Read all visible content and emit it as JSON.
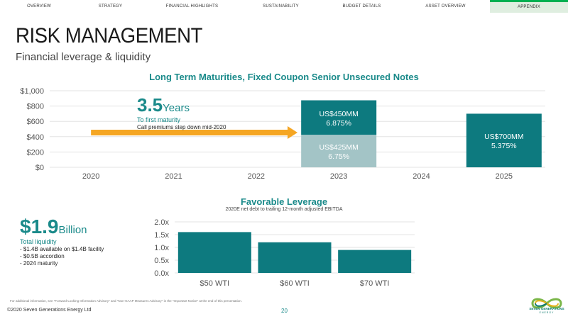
{
  "nav": {
    "items": [
      {
        "label": "OVERVIEW"
      },
      {
        "label": "STRATEGY"
      },
      {
        "label": "FINANCIAL HIGHLIGHTS"
      },
      {
        "label": "SUSTAINABILITY"
      },
      {
        "label": "BUDGET DETAILS"
      },
      {
        "label": "ASSET OVERVIEW"
      },
      {
        "label": "APPENDIX",
        "active": true
      }
    ],
    "active_color": "#00b050"
  },
  "title": "RISK MANAGEMENT",
  "subtitle": "Financial leverage & liquidity",
  "maturity": {
    "value": "3.5",
    "unit": "Years",
    "label": "To first maturity",
    "note": "Call premiums step down mid-2020"
  },
  "liquidity": {
    "value": "$1.9",
    "unit": "Billion",
    "label": "Total liquidity",
    "items": [
      "- $1.4B available on $1.4B facility",
      "- $0.5B accordion",
      "- 2024 maturity"
    ]
  },
  "footnote": "For additional information, see \"Forward-Looking Information Advisory\" and \"Non-GAAP Measures Advisory\" in the \"Important Notice\" at the end of this presentation.",
  "copyright": "©2020 Seven Generations Energy Ltd",
  "page_number": "20",
  "logo": {
    "name": "SEVEN GENERATIONS",
    "sub": "ENERGY",
    "icon": "seven-generations-logo-icon"
  },
  "colors": {
    "teal": "#1a8a8a",
    "dark_teal": "#0d7a7f",
    "light_teal": "#a3c4c6",
    "arrow": "#f5a623"
  },
  "chart_data": [
    {
      "type": "bar",
      "title": "Long Term Maturities, Fixed Coupon Senior Unsecured Notes",
      "categories": [
        "2020",
        "2021",
        "2022",
        "2023",
        "2024",
        "2025"
      ],
      "stacked": true,
      "series": [
        {
          "values": [
            0,
            0,
            0,
            425,
            0,
            0
          ],
          "labels": {
            "2023": [
              "US$425MM",
              "6.75%"
            ]
          },
          "color": "#a3c4c6"
        },
        {
          "values": [
            0,
            0,
            0,
            450,
            0,
            700
          ],
          "labels": {
            "2023": [
              "US$450MM",
              "6.875%"
            ],
            "2025": [
              "US$700MM",
              "5.375%"
            ]
          },
          "color": "#0d7a7f"
        }
      ],
      "yticks": [
        "$0",
        "$200",
        "$400",
        "$600",
        "$800",
        "$1,000"
      ],
      "ylim": [
        0,
        1000
      ],
      "grid": true
    },
    {
      "type": "bar",
      "title": "Favorable Leverage",
      "subtitle": "2020E net debt to trailing 12-month adjusted EBITDA",
      "categories": [
        "$50 WTI",
        "$60 WTI",
        "$70 WTI"
      ],
      "values": [
        1.6,
        1.2,
        0.9
      ],
      "yticks": [
        "0.0x",
        "0.5x",
        "1.0x",
        "1.5x",
        "2.0x"
      ],
      "ylim": [
        0,
        2.0
      ],
      "grid": true,
      "color": "#0d7a7f"
    }
  ]
}
